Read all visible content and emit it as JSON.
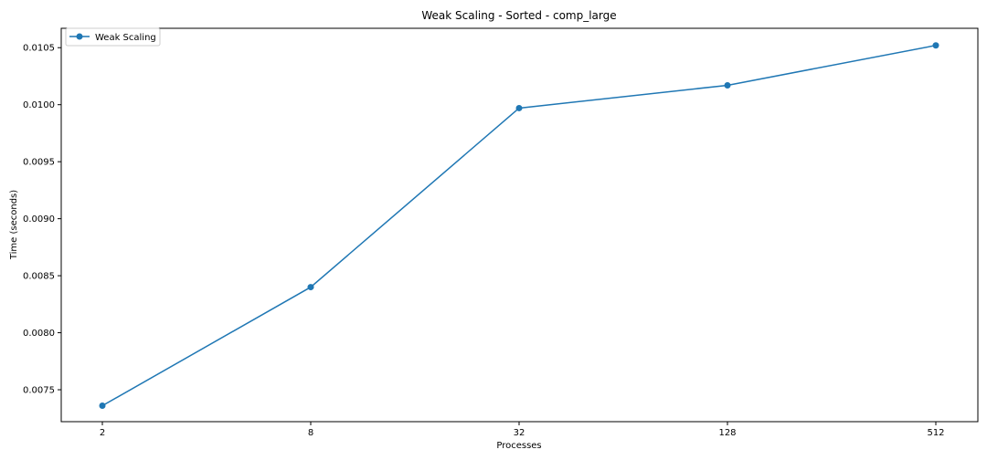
{
  "chart_data": {
    "type": "line",
    "title": "Weak Scaling - Sorted - comp_large",
    "xlabel": "Processes",
    "ylabel": "Time (seconds)",
    "x_scale": "log2",
    "categories": [
      "2",
      "8",
      "32",
      "128",
      "512"
    ],
    "x": [
      2,
      8,
      32,
      128,
      512
    ],
    "series": [
      {
        "name": "Weak Scaling",
        "values": [
          0.00736,
          0.0084,
          0.00997,
          0.01017,
          0.01052
        ],
        "color": "#1f77b4",
        "marker": "circle"
      }
    ],
    "ylim": [
      0.00722,
      0.01067
    ],
    "yticks": [
      0.0075,
      0.008,
      0.0085,
      0.009,
      0.0095,
      0.01,
      0.0105
    ],
    "ytick_labels": [
      "0.0075",
      "0.0080",
      "0.0085",
      "0.0090",
      "0.0095",
      "0.0100",
      "0.0105"
    ],
    "grid": false,
    "legend": "top-left"
  }
}
